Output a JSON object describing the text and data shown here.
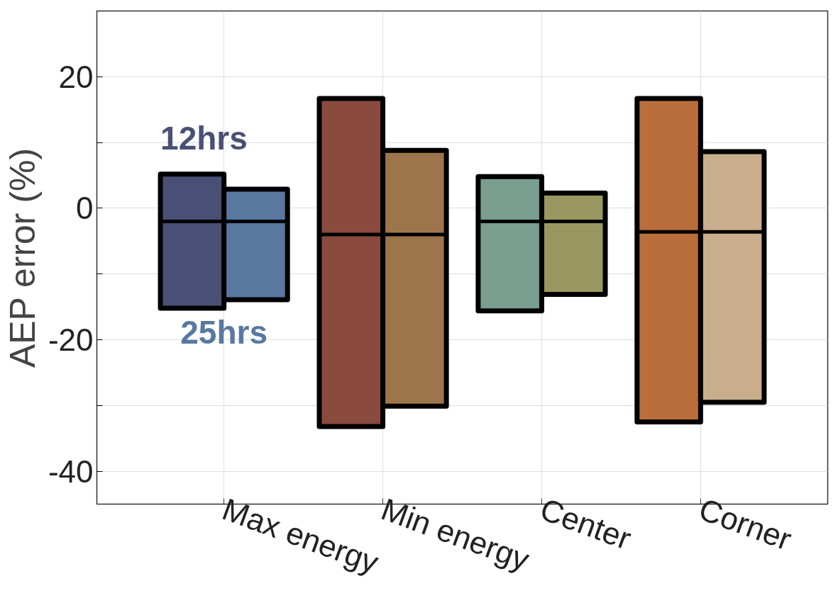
{
  "chart_data": {
    "type": "box",
    "ylabel": "AEP error (%)",
    "categories": [
      "Max energy",
      "Min energy",
      "Center",
      "Corner"
    ],
    "ylim": [
      -45,
      30
    ],
    "yticks": [
      {
        "value": -40,
        "label": "-40"
      },
      {
        "value": -30,
        "label": null
      },
      {
        "value": -20,
        "label": "-20"
      },
      {
        "value": -10,
        "label": null
      },
      0,
      {
        "value": 10,
        "label": null
      },
      20
    ],
    "grid": true,
    "series": [
      {
        "name": "12hrs",
        "color": "#4a5075",
        "colors": [
          "#4a5075",
          "#8a4a3e",
          "#7a9e90",
          "#b96e3c"
        ],
        "boxes": [
          {
            "low": -15.2,
            "q1": -15.2,
            "median": -2.0,
            "q3": 5.2,
            "high": 5.2
          },
          {
            "low": -33.2,
            "q1": -33.2,
            "median": -4.0,
            "q3": 16.7,
            "high": 16.7
          },
          {
            "low": -15.6,
            "q1": -15.6,
            "median": -2.0,
            "q3": 4.8,
            "high": 4.8
          },
          {
            "low": -32.5,
            "q1": -32.5,
            "median": -3.6,
            "q3": 16.7,
            "high": 16.7
          }
        ]
      },
      {
        "name": "25hrs",
        "color": "#5878a0",
        "colors": [
          "#5878a0",
          "#9c764a",
          "#9a9860",
          "#c8ae8c"
        ],
        "boxes": [
          {
            "low": -13.9,
            "q1": -13.9,
            "median": -2.0,
            "q3": 2.9,
            "high": 2.9
          },
          {
            "low": -30.1,
            "q1": -30.1,
            "median": -4.0,
            "q3": 8.8,
            "high": 8.8
          },
          {
            "low": -13.1,
            "q1": -13.1,
            "median": -2.0,
            "q3": 2.3,
            "high": 2.3
          },
          {
            "low": -29.5,
            "q1": -29.5,
            "median": -3.6,
            "q3": 8.6,
            "high": 8.6
          }
        ]
      }
    ]
  }
}
